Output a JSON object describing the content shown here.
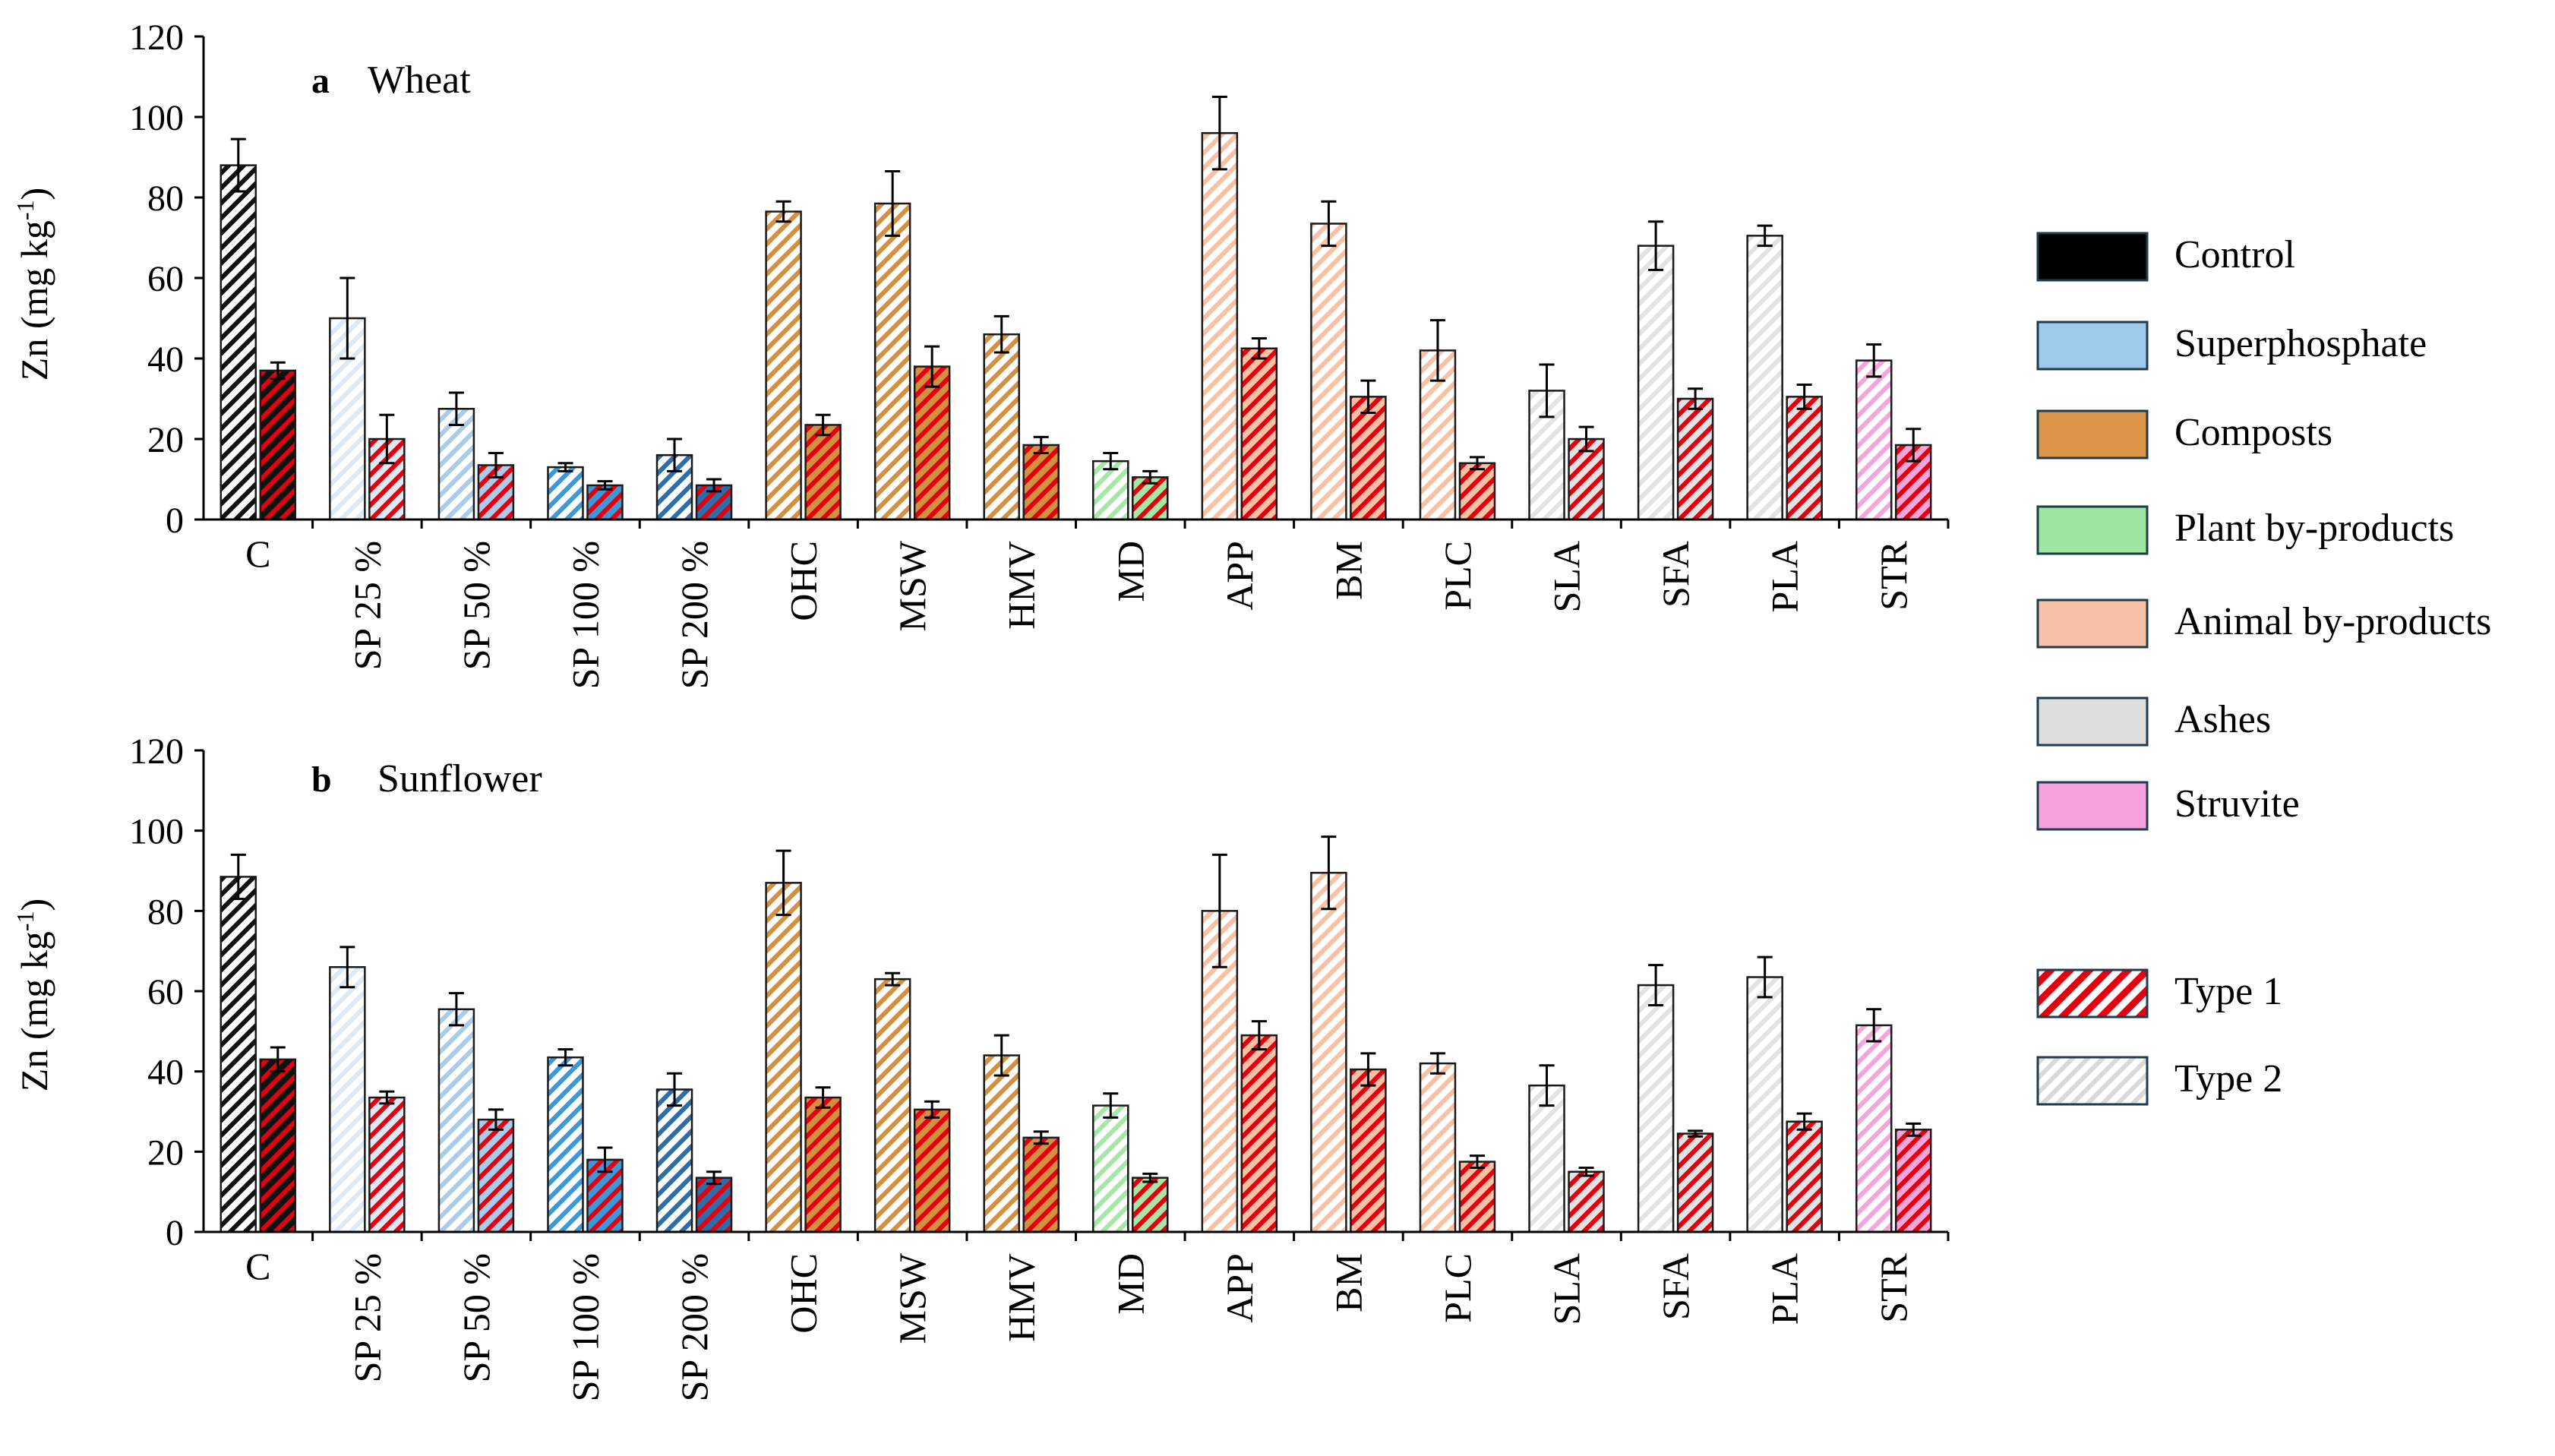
{
  "legend": {
    "items": [
      {
        "label": "Control",
        "color": "#000000"
      },
      {
        "label": "Superphosphate",
        "color": "#9DC9EB"
      },
      {
        "label": "Composts",
        "color": "#DC9448"
      },
      {
        "label": "Plant by-products",
        "color": "#9EE59E"
      },
      {
        "label": "Animal by-products",
        "color": "#F9C2A6"
      },
      {
        "label": "Ashes",
        "color": "#DEDEDE"
      },
      {
        "label": "Struvite",
        "color": "#F7A2DC"
      }
    ],
    "types": [
      {
        "label": "Type 1",
        "color": "#E3000F"
      },
      {
        "label": "Type 2",
        "color": "#D9D9D9"
      }
    ]
  },
  "chart_data": [
    {
      "type": "bar",
      "panel": "a",
      "title": "Wheat",
      "ylabel": "Zn (mg kg-1)",
      "ylim": [
        0,
        120
      ],
      "yticks": [
        0,
        20,
        40,
        60,
        80,
        100,
        120
      ],
      "categories": [
        "C",
        "SP 25 %",
        "SP 50 %",
        "SP 100 %",
        "SP 200 %",
        "OHC",
        "MSW",
        "HMV",
        "MD",
        "APP",
        "BM",
        "PLC",
        "SLA",
        "SFA",
        "PLA",
        "STR"
      ],
      "category_group": [
        "Control",
        "Superphosphate",
        "Superphosphate",
        "Superphosphate",
        "Superphosphate",
        "Composts",
        "Composts",
        "Composts",
        "Plant by-products",
        "Animal by-products",
        "Animal by-products",
        "Animal by-products",
        "Ashes",
        "Ashes",
        "Ashes",
        "Struvite"
      ],
      "category_colors": [
        "#111111",
        "#DDE9F4",
        "#A8CCEA",
        "#3D98D9",
        "#2D6DA8",
        "#D39040",
        "#D39040",
        "#D39040",
        "#A6E6A6",
        "#F9C0A4",
        "#F9C0A4",
        "#F9C0A4",
        "#E3E3E3",
        "#E3E3E3",
        "#E3E3E3",
        "#F5A5DA"
      ],
      "series": [
        {
          "name": "Type 2",
          "values": [
            88,
            50,
            27.5,
            13,
            16,
            76.5,
            78.5,
            46,
            14.5,
            96,
            73.5,
            42,
            32,
            68,
            70.5,
            39.5
          ],
          "errors": [
            6.5,
            10,
            4,
            1,
            4,
            2.5,
            8,
            4.5,
            2,
            9,
            5.5,
            7.5,
            6.5,
            6,
            2.5,
            4
          ]
        },
        {
          "name": "Type 1",
          "values": [
            37,
            20,
            13.5,
            8.5,
            8.5,
            23.5,
            38,
            18.5,
            10.5,
            42.5,
            30.5,
            14,
            20,
            30,
            30.5,
            18.5
          ],
          "errors": [
            2,
            6,
            3,
            1,
            1.5,
            2.5,
            5,
            2,
            1.5,
            2.5,
            4,
            1.5,
            3,
            2.5,
            3,
            4
          ]
        }
      ]
    },
    {
      "type": "bar",
      "panel": "b",
      "title": "Sunflower",
      "ylabel": "Zn (mg kg-1)",
      "ylim": [
        0,
        120
      ],
      "yticks": [
        0,
        20,
        40,
        60,
        80,
        100,
        120
      ],
      "categories": [
        "C",
        "SP 25 %",
        "SP 50 %",
        "SP 100 %",
        "SP 200 %",
        "OHC",
        "MSW",
        "HMV",
        "MD",
        "APP",
        "BM",
        "PLC",
        "SLA",
        "SFA",
        "PLA",
        "STR"
      ],
      "category_group": [
        "Control",
        "Superphosphate",
        "Superphosphate",
        "Superphosphate",
        "Superphosphate",
        "Composts",
        "Composts",
        "Composts",
        "Plant by-products",
        "Animal by-products",
        "Animal by-products",
        "Animal by-products",
        "Ashes",
        "Ashes",
        "Ashes",
        "Struvite"
      ],
      "category_colors": [
        "#111111",
        "#DDE9F4",
        "#A8CCEA",
        "#3D98D9",
        "#2D6DA8",
        "#D39040",
        "#D39040",
        "#D39040",
        "#A6E6A6",
        "#F9C0A4",
        "#F9C0A4",
        "#F9C0A4",
        "#E3E3E3",
        "#E3E3E3",
        "#E3E3E3",
        "#F5A5DA"
      ],
      "series": [
        {
          "name": "Type 2",
          "values": [
            88.5,
            66,
            55.5,
            43.5,
            35.5,
            87,
            63,
            44,
            31.5,
            80,
            89.5,
            42,
            36.5,
            61.5,
            63.5,
            51.5
          ],
          "errors": [
            5.5,
            5,
            4,
            2,
            4,
            8,
            1.5,
            5,
            3,
            14,
            9,
            2.5,
            5,
            5,
            5,
            4
          ]
        },
        {
          "name": "Type 1",
          "values": [
            43,
            33.5,
            28,
            18,
            13.5,
            33.5,
            30.5,
            23.5,
            13.5,
            49,
            40.5,
            17.5,
            15,
            24.5,
            27.5,
            25.5
          ],
          "errors": [
            3,
            1.5,
            2.5,
            3,
            1.5,
            2.5,
            2,
            1.5,
            1,
            3.5,
            4,
            1.5,
            1,
            0.7,
            2,
            1.5
          ]
        }
      ]
    }
  ]
}
